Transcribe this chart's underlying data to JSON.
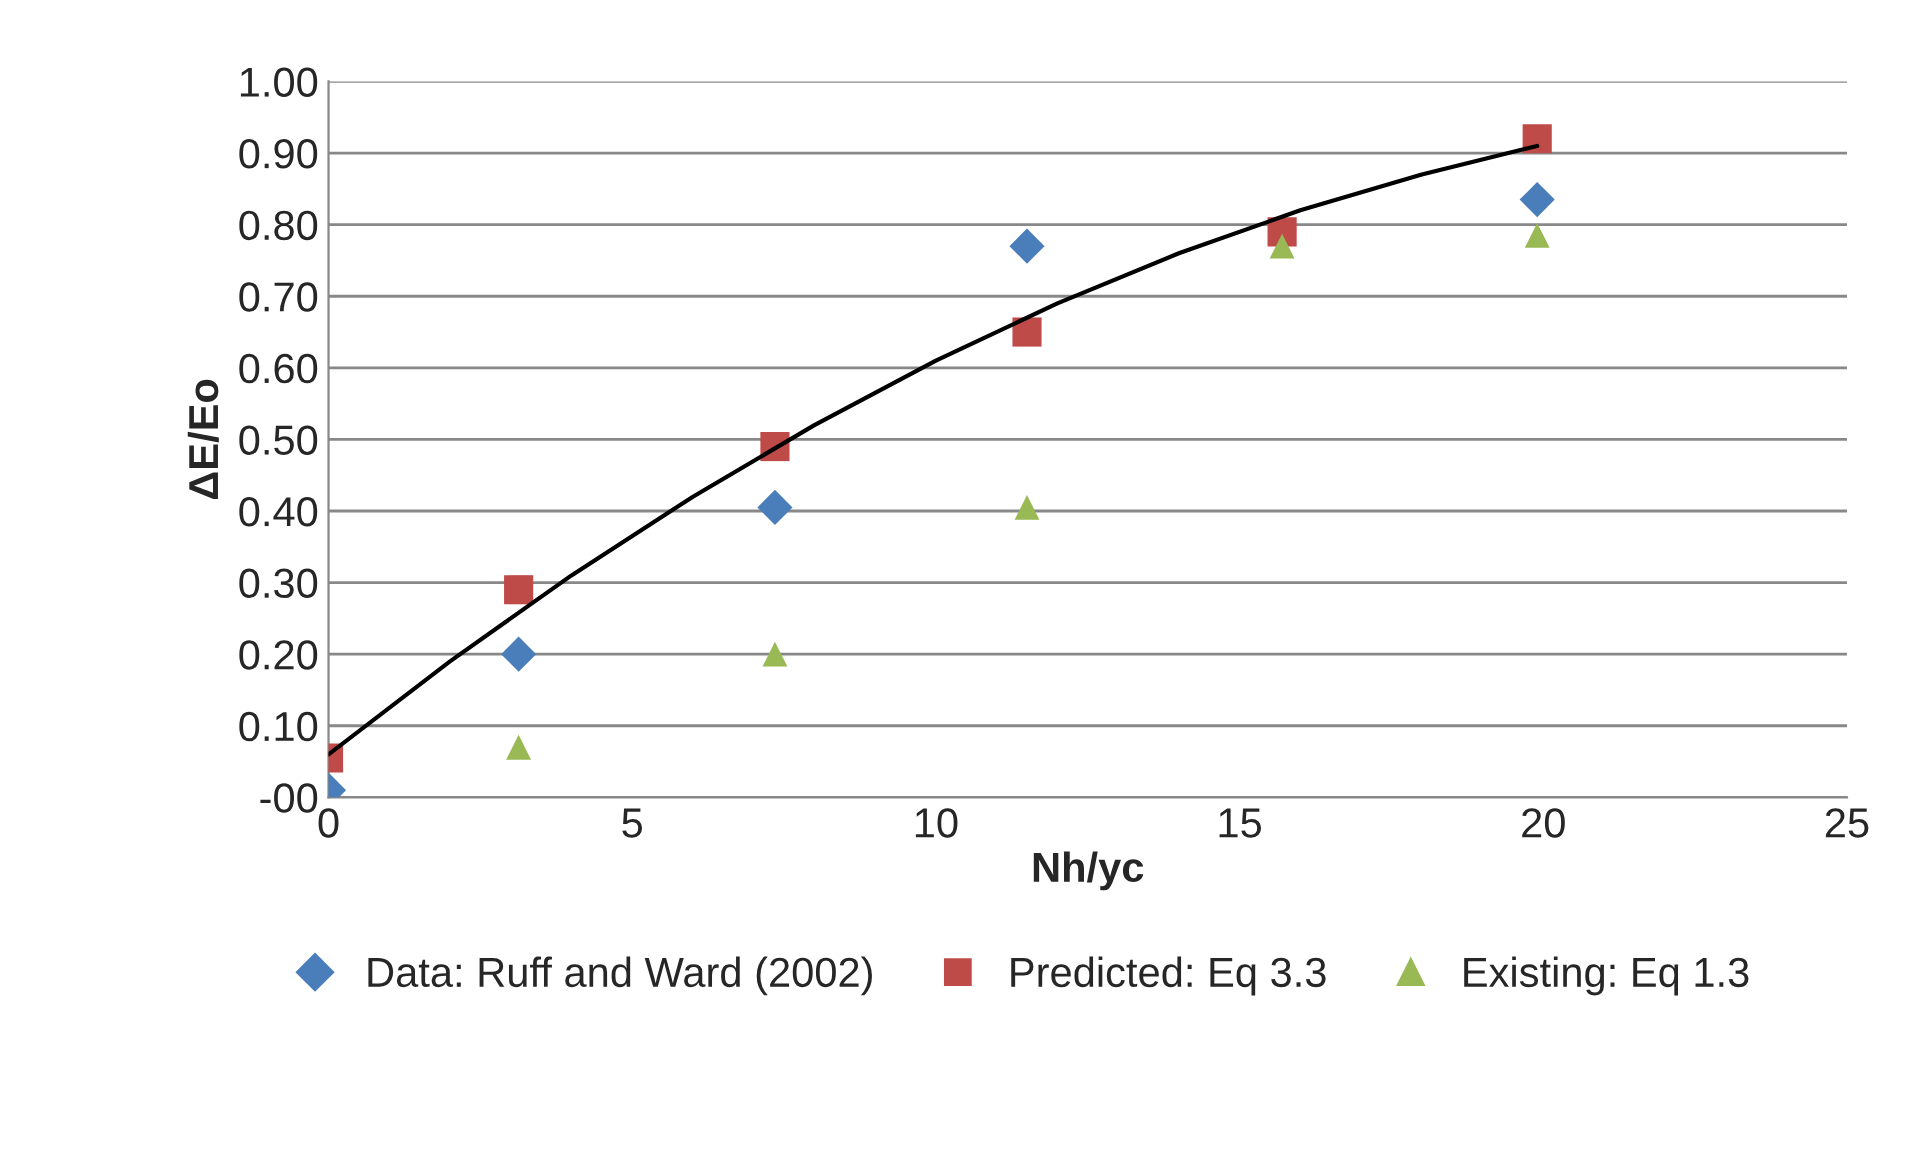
{
  "chart_data": {
    "type": "scatter",
    "xlabel": "Nh/yc",
    "ylabel": "ΔE/Eo",
    "xlim": [
      0,
      25
    ],
    "xticks": [
      0,
      5,
      10,
      15,
      20,
      25
    ],
    "ylim": [
      0,
      1
    ],
    "yticks": [
      {
        "value": 0,
        "label": "-00"
      },
      {
        "value": 0.1,
        "label": "0.10"
      },
      {
        "value": 0.2,
        "label": "0.20"
      },
      {
        "value": 0.3,
        "label": "0.30"
      },
      {
        "value": 0.4,
        "label": "0.40"
      },
      {
        "value": 0.5,
        "label": "0.50"
      },
      {
        "value": 0.6,
        "label": "0.60"
      },
      {
        "value": 0.7,
        "label": "0.70"
      },
      {
        "value": 0.8,
        "label": "0.80"
      },
      {
        "value": 0.9,
        "label": "0.90"
      },
      {
        "value": 1.0,
        "label": "1.00"
      }
    ],
    "grid": "y",
    "legend": "bottom",
    "series": [
      {
        "name": "Data: Ruff and Ward (2002)",
        "color": "#4a7ebb",
        "marker": "diamond",
        "x": [
          0,
          3.13,
          7.35,
          11.5,
          19.9
        ],
        "values": [
          0.01,
          0.2,
          0.405,
          0.77,
          0.835
        ]
      },
      {
        "name": "Predicted: Eq 3.3",
        "color": "#be4b48",
        "marker": "square",
        "x": [
          0,
          3.13,
          7.35,
          11.5,
          15.7,
          19.9
        ],
        "values": [
          0.055,
          0.29,
          0.49,
          0.65,
          0.79,
          0.92
        ]
      },
      {
        "name": "Existing: Eq 1.3",
        "color": "#98b954",
        "marker": "triangle",
        "x": [
          3.13,
          7.35,
          11.5,
          15.7,
          19.9
        ],
        "values": [
          0.07,
          0.2,
          0.405,
          0.77,
          0.785
        ]
      },
      {
        "type": "line",
        "color": "#000000",
        "marker": "none",
        "x": [
          0,
          2,
          4,
          6,
          8,
          10,
          12,
          14,
          16,
          18,
          19.9
        ],
        "values": [
          0.06,
          0.19,
          0.31,
          0.42,
          0.52,
          0.61,
          0.69,
          0.76,
          0.82,
          0.87,
          0.91
        ]
      }
    ]
  }
}
